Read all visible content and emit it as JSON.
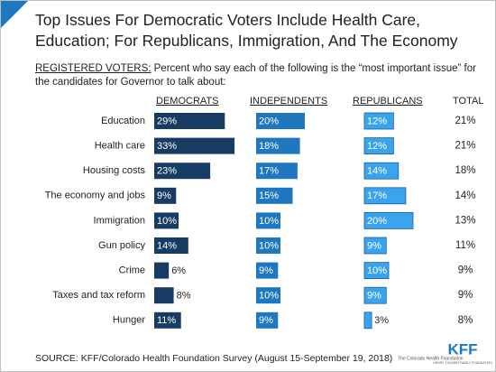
{
  "chart_data": {
    "type": "bar",
    "orientation": "horizontal",
    "title": "Top Issues For Democratic Voters Include Health Care, Education; For Republicans, Immigration, And The Economy",
    "subtitle_lead": "REGISTERED VOTERS:",
    "subtitle": "Percent who say each of the following is the “most important issue” for the candidates for Governor to talk about:",
    "categories": [
      "Education",
      "Health care",
      "Housing costs",
      "The economy and jobs",
      "Immigration",
      "Gun policy",
      "Crime",
      "Taxes and tax reform",
      "Hunger"
    ],
    "series": [
      {
        "name": "DEMOCRATS",
        "color": "#173b63",
        "values": [
          29,
          33,
          23,
          9,
          10,
          14,
          6,
          8,
          11
        ],
        "value_labels": [
          "29%",
          "33%",
          "23%",
          "9%",
          "10%",
          "14%",
          "6%",
          "8%",
          "11%"
        ]
      },
      {
        "name": "INDEPENDENTS",
        "color": "#1f77c0",
        "values": [
          20,
          18,
          17,
          15,
          10,
          10,
          9,
          10,
          9
        ],
        "value_labels": [
          "20%",
          "18%",
          "17%",
          "15%",
          "10%",
          "10%",
          "9%",
          "10%",
          "9%"
        ]
      },
      {
        "name": "REPUBLICANS",
        "color": "#3aa3ee",
        "values": [
          12,
          12,
          14,
          17,
          20,
          9,
          10,
          9,
          3
        ],
        "value_labels": [
          "12%",
          "12%",
          "14%",
          "17%",
          "20%",
          "9%",
          "10%",
          "9%",
          "3%"
        ]
      },
      {
        "name": "TOTAL",
        "values": [
          21,
          21,
          18,
          14,
          13,
          11,
          9,
          9,
          8
        ],
        "value_labels": [
          "21%",
          "21%",
          "18%",
          "14%",
          "13%",
          "11%",
          "9%",
          "9%",
          "8%"
        ]
      }
    ],
    "source": "SOURCE: KFF/Colorado Health Foundation Survey (August 15-September 19, 2018)",
    "logos": [
      "The Colorado Health Foundation",
      "KFF",
      "HENRY J KAISER FAMILY FOUNDATION"
    ]
  }
}
